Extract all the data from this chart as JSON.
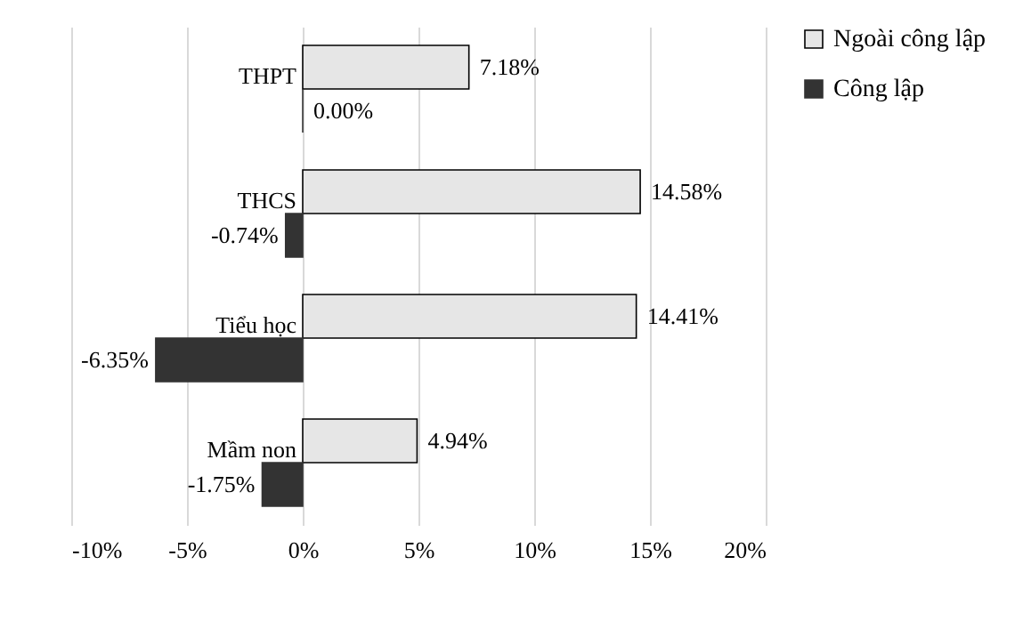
{
  "chart_data": {
    "type": "bar",
    "orientation": "horizontal",
    "categories": [
      "THPT",
      "THCS",
      "Tiểu học",
      "Mầm non"
    ],
    "series": [
      {
        "name": "Ngoài công lập",
        "color": "#e6e6e6",
        "values": [
          7.18,
          14.58,
          14.41,
          4.94
        ],
        "value_labels": [
          "7.18%",
          "14.58%",
          "14.41%",
          "4.94%"
        ]
      },
      {
        "name": "Công lập",
        "color": "#333333",
        "values": [
          0,
          -0.74,
          -6.35,
          -1.75
        ],
        "value_labels": [
          "0.00%",
          "-0.74%",
          "-6.35%",
          "-1.75%"
        ]
      }
    ],
    "xlim": [
      -10,
      20
    ],
    "xticks": [
      {
        "value": -10,
        "label": "-10%"
      },
      {
        "value": -5,
        "label": "-5%"
      },
      {
        "value": 0,
        "label": "0%"
      },
      {
        "value": 5,
        "label": "5%"
      },
      {
        "value": 10,
        "label": "10%"
      },
      {
        "value": 15,
        "label": "15%"
      },
      {
        "value": 20,
        "label": "20%"
      }
    ],
    "grid": "x",
    "legend": "right"
  }
}
